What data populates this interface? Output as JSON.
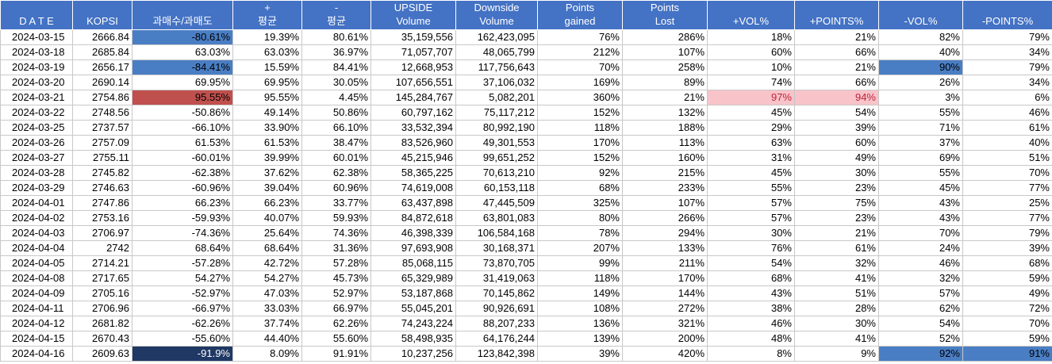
{
  "headers": [
    {
      "line1": "",
      "line2": "D A T E"
    },
    {
      "line1": "",
      "line2": "KOPSI"
    },
    {
      "line1": "",
      "line2": "과매수/과매도"
    },
    {
      "line1": "+",
      "line2": "평균"
    },
    {
      "line1": "-",
      "line2": "평균"
    },
    {
      "line1": "UPSIDE",
      "line2": "Volume"
    },
    {
      "line1": "Downside",
      "line2": "Volume"
    },
    {
      "line1": "Points",
      "line2": "gained"
    },
    {
      "line1": "Points",
      "line2": "Lost"
    },
    {
      "line1": "",
      "line2": "+VOL%"
    },
    {
      "line1": "",
      "line2": "+POINTS%"
    },
    {
      "line1": "",
      "line2": "-VOL%"
    },
    {
      "line1": "",
      "line2": "-POINTS%"
    }
  ],
  "rows": [
    [
      "2024-03-15",
      "2666.84",
      "-80.61%",
      "19.39%",
      "80.61%",
      "35,159,556",
      "162,423,095",
      "76%",
      "286%",
      "18%",
      "21%",
      "82%",
      "79%"
    ],
    [
      "2024-03-18",
      "2685.84",
      "63.03%",
      "63.03%",
      "36.97%",
      "71,057,707",
      "48,065,799",
      "212%",
      "107%",
      "60%",
      "66%",
      "40%",
      "34%"
    ],
    [
      "2024-03-19",
      "2656.17",
      "-84.41%",
      "15.59%",
      "84.41%",
      "12,668,953",
      "117,756,643",
      "70%",
      "258%",
      "10%",
      "21%",
      "90%",
      "79%"
    ],
    [
      "2024-03-20",
      "2690.14",
      "69.95%",
      "69.95%",
      "30.05%",
      "107,656,551",
      "37,106,032",
      "169%",
      "89%",
      "74%",
      "66%",
      "26%",
      "34%"
    ],
    [
      "2024-03-21",
      "2754.86",
      "95.55%",
      "95.55%",
      "4.45%",
      "145,284,767",
      "5,082,201",
      "360%",
      "21%",
      "97%",
      "94%",
      "3%",
      "6%"
    ],
    [
      "2024-03-22",
      "2748.56",
      "-50.86%",
      "49.14%",
      "50.86%",
      "60,797,162",
      "75,117,212",
      "152%",
      "132%",
      "45%",
      "54%",
      "55%",
      "46%"
    ],
    [
      "2024-03-25",
      "2737.57",
      "-66.10%",
      "33.90%",
      "66.10%",
      "33,532,394",
      "80,992,190",
      "118%",
      "188%",
      "29%",
      "39%",
      "71%",
      "61%"
    ],
    [
      "2024-03-26",
      "2757.09",
      "61.53%",
      "61.53%",
      "38.47%",
      "83,526,960",
      "49,301,553",
      "170%",
      "113%",
      "63%",
      "60%",
      "37%",
      "40%"
    ],
    [
      "2024-03-27",
      "2755.11",
      "-60.01%",
      "39.99%",
      "60.01%",
      "45,215,946",
      "99,651,252",
      "152%",
      "160%",
      "31%",
      "49%",
      "69%",
      "51%"
    ],
    [
      "2024-03-28",
      "2745.82",
      "-62.38%",
      "37.62%",
      "62.38%",
      "58,365,225",
      "70,613,210",
      "92%",
      "215%",
      "45%",
      "30%",
      "55%",
      "70%"
    ],
    [
      "2024-03-29",
      "2746.63",
      "-60.96%",
      "39.04%",
      "60.96%",
      "74,619,008",
      "60,153,118",
      "68%",
      "233%",
      "55%",
      "23%",
      "45%",
      "77%"
    ],
    [
      "2024-04-01",
      "2747.86",
      "66.23%",
      "66.23%",
      "33.77%",
      "63,437,898",
      "47,445,509",
      "325%",
      "107%",
      "57%",
      "75%",
      "43%",
      "25%"
    ],
    [
      "2024-04-02",
      "2753.16",
      "-59.93%",
      "40.07%",
      "59.93%",
      "84,872,618",
      "63,801,083",
      "80%",
      "266%",
      "57%",
      "23%",
      "43%",
      "77%"
    ],
    [
      "2024-04-03",
      "2706.97",
      "-74.36%",
      "25.64%",
      "74.36%",
      "46,398,339",
      "106,584,168",
      "78%",
      "294%",
      "30%",
      "21%",
      "70%",
      "79%"
    ],
    [
      "2024-04-04",
      "2742",
      "68.64%",
      "68.64%",
      "31.36%",
      "97,693,908",
      "30,168,371",
      "207%",
      "133%",
      "76%",
      "61%",
      "24%",
      "39%"
    ],
    [
      "2024-04-05",
      "2714.21",
      "-57.28%",
      "42.72%",
      "57.28%",
      "85,068,115",
      "73,870,705",
      "99%",
      "211%",
      "54%",
      "32%",
      "46%",
      "68%"
    ],
    [
      "2024-04-08",
      "2717.65",
      "54.27%",
      "54.27%",
      "45.73%",
      "65,329,989",
      "31,419,063",
      "118%",
      "170%",
      "68%",
      "41%",
      "32%",
      "59%"
    ],
    [
      "2024-04-09",
      "2705.16",
      "-52.97%",
      "47.03%",
      "52.97%",
      "53,187,868",
      "70,145,862",
      "149%",
      "144%",
      "43%",
      "51%",
      "57%",
      "49%"
    ],
    [
      "2024-04-11",
      "2706.96",
      "-66.97%",
      "33.03%",
      "66.97%",
      "55,045,201",
      "90,926,691",
      "108%",
      "272%",
      "38%",
      "28%",
      "62%",
      "72%"
    ],
    [
      "2024-04-12",
      "2681.82",
      "-62.26%",
      "37.74%",
      "62.26%",
      "74,243,224",
      "88,207,233",
      "136%",
      "321%",
      "46%",
      "30%",
      "54%",
      "70%"
    ],
    [
      "2024-04-15",
      "2670.43",
      "-55.60%",
      "44.40%",
      "55.60%",
      "58,498,935",
      "64,176,244",
      "139%",
      "200%",
      "48%",
      "41%",
      "52%",
      "59%"
    ],
    [
      "2024-04-16",
      "2609.63",
      "-91.9%",
      "8.09%",
      "91.91%",
      "10,237,256",
      "123,842,398",
      "39%",
      "420%",
      "8%",
      "9%",
      "92%",
      "91%"
    ]
  ],
  "highlights": [
    {
      "row": 0,
      "col": 2,
      "style": "hl-blue",
      "color": "#4a7ec4"
    },
    {
      "row": 2,
      "col": 2,
      "style": "hl-blue",
      "color": "#4a7ec4"
    },
    {
      "row": 2,
      "col": 11,
      "style": "hl-blue",
      "color": "#4a7ec4"
    },
    {
      "row": 4,
      "col": 2,
      "style": "hl-red",
      "color": "#c0504d"
    },
    {
      "row": 4,
      "col": 9,
      "style": "hl-pink",
      "color": "#f8c3c9"
    },
    {
      "row": 4,
      "col": 10,
      "style": "hl-pink",
      "color": "#f8c3c9"
    },
    {
      "row": 21,
      "col": 2,
      "style": "hl-navy",
      "color": "#203864"
    },
    {
      "row": 21,
      "col": 11,
      "style": "hl-blue",
      "color": "#4a7ec4"
    },
    {
      "row": 21,
      "col": 12,
      "style": "hl-blue",
      "color": "#4a7ec4"
    }
  ],
  "colors": {
    "header_bg": "#4472c4",
    "header_text": "#ffffff",
    "grid": "#c8c8c8"
  }
}
